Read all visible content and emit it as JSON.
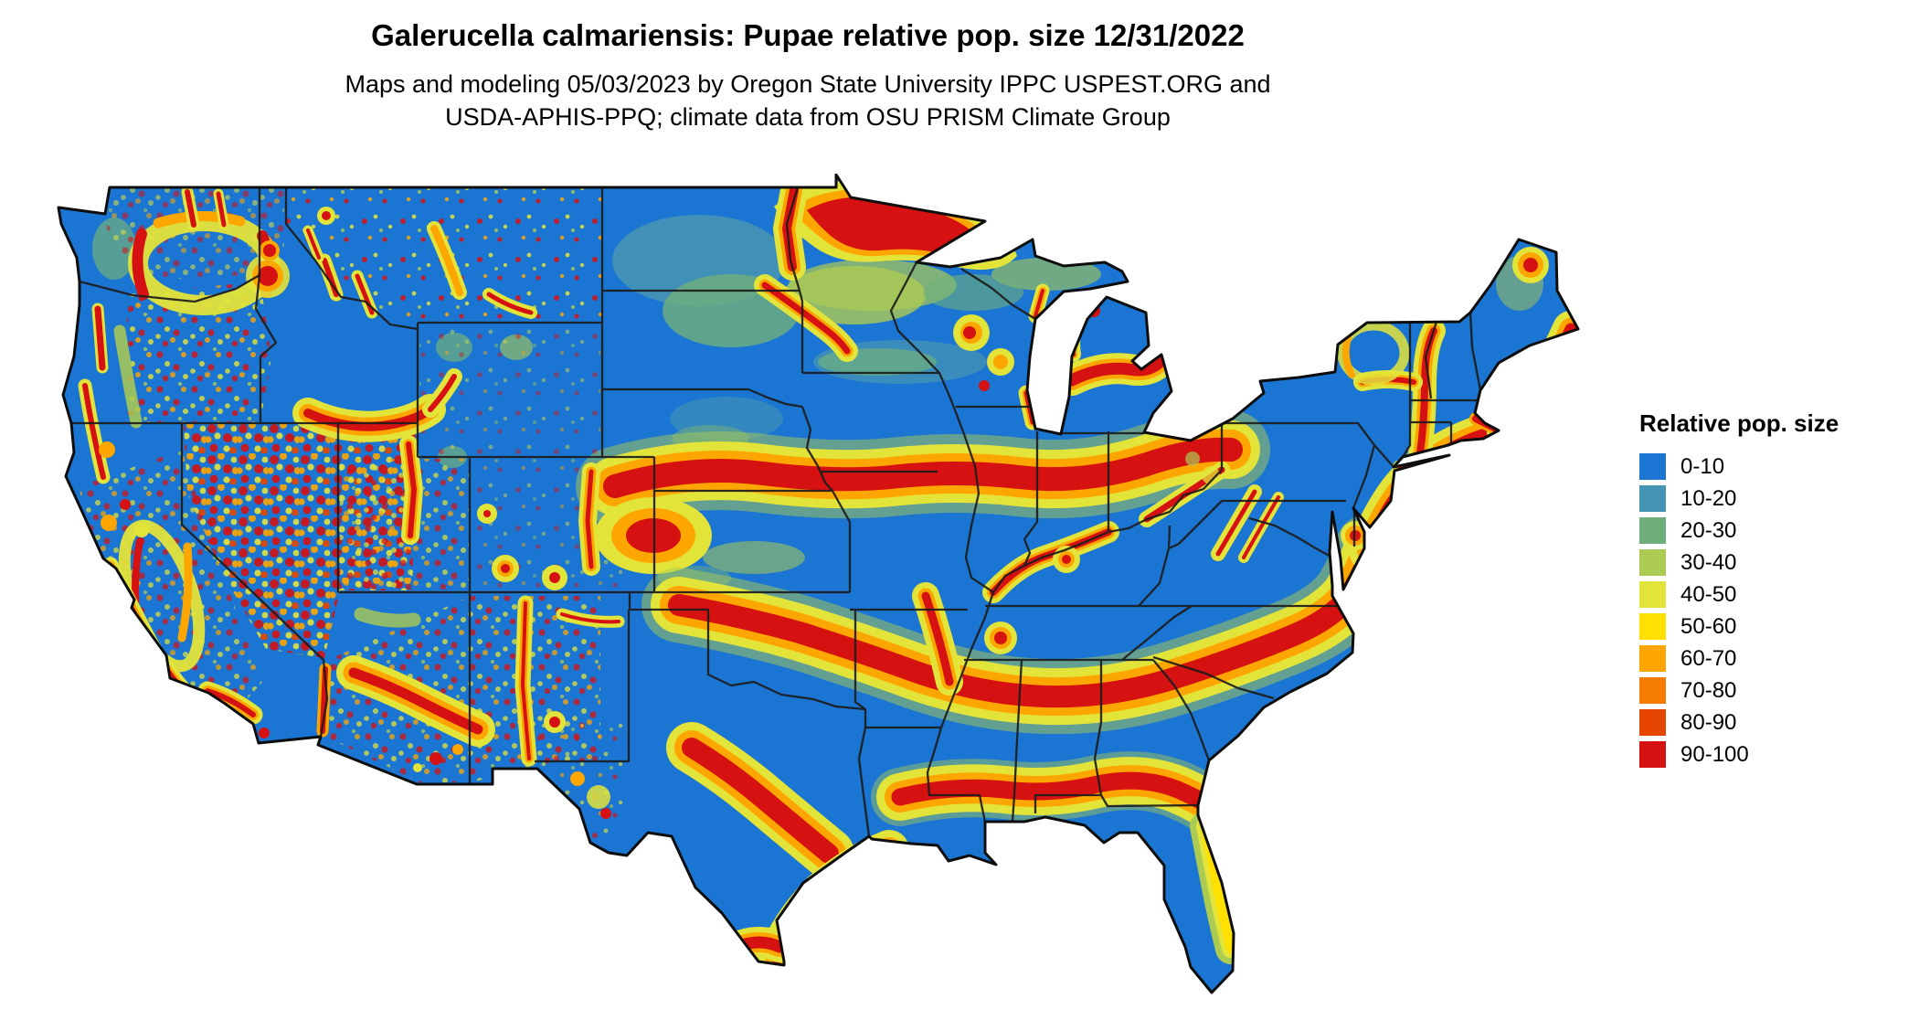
{
  "title": "Galerucella calmariensis: Pupae relative pop. size 12/31/2022",
  "subtitle": {
    "line1": "Maps and modeling 05/03/2023 by Oregon State University IPPC USPEST.ORG and",
    "line2": "USDA-APHIS-PPQ; climate data from OSU PRISM Climate Group"
  },
  "legend": {
    "title": "Relative pop. size",
    "items": [
      {
        "label": "0-10",
        "color": "#1B75D2"
      },
      {
        "label": "10-20",
        "color": "#4694B4"
      },
      {
        "label": "20-30",
        "color": "#6FAF7C"
      },
      {
        "label": "30-40",
        "color": "#ACCB52"
      },
      {
        "label": "40-50",
        "color": "#E3E43A"
      },
      {
        "label": "50-60",
        "color": "#FFE000"
      },
      {
        "label": "60-70",
        "color": "#FEA600"
      },
      {
        "label": "70-80",
        "color": "#F57C00"
      },
      {
        "label": "80-90",
        "color": "#E64500"
      },
      {
        "label": "90-100",
        "color": "#D61111"
      }
    ]
  }
}
